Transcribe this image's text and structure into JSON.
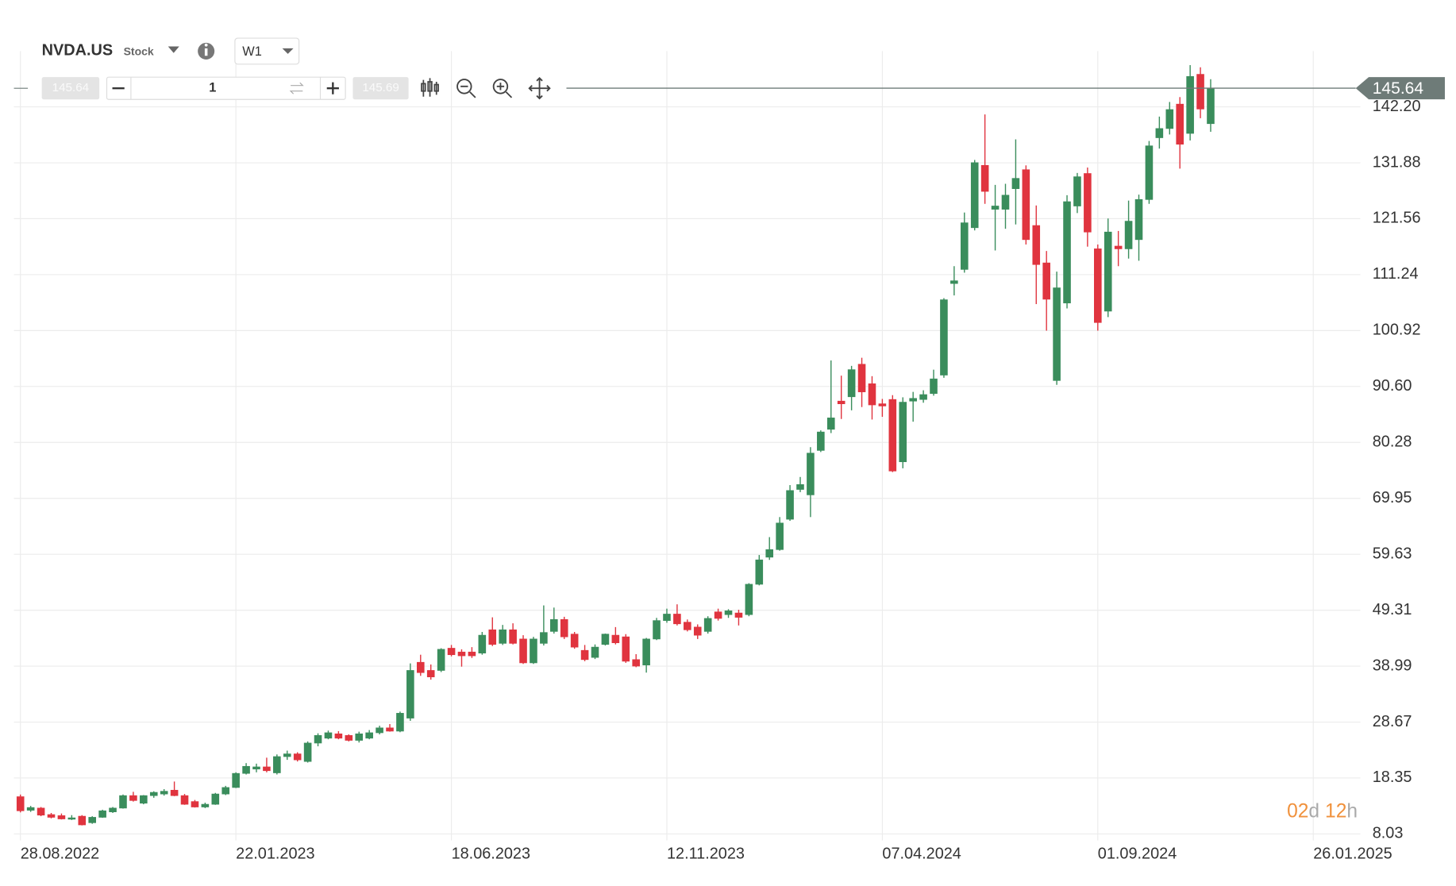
{
  "ui": {
    "symbol": "NVDA.US",
    "asset_type": "Stock",
    "interval": "W1",
    "sell_price": "145.64",
    "quantity": "1",
    "buy_price": "145.69"
  },
  "chart_data": {
    "type": "candlestick",
    "categories": [
      "28.08.2022",
      null,
      null,
      null,
      null,
      null,
      null,
      null,
      null,
      null,
      null,
      null,
      null,
      null,
      null,
      null,
      null,
      null,
      null,
      null,
      null,
      "22.01.2023",
      null,
      null,
      null,
      null,
      null,
      null,
      null,
      null,
      null,
      null,
      null,
      null,
      null,
      null,
      null,
      null,
      null,
      null,
      null,
      null,
      "18.06.2023",
      null,
      null,
      null,
      null,
      null,
      null,
      null,
      null,
      null,
      null,
      null,
      null,
      null,
      null,
      null,
      null,
      null,
      null,
      null,
      null,
      "12.11.2023",
      null,
      null,
      null,
      null,
      null,
      null,
      null,
      null,
      null,
      null,
      null,
      null,
      null,
      null,
      null,
      null,
      null,
      null,
      null,
      null,
      "07.04.2024",
      null,
      null,
      null,
      null,
      null,
      null,
      null,
      null,
      null,
      null,
      null,
      null,
      null,
      null,
      null,
      null,
      null,
      null,
      null,
      null,
      "01.09.2024",
      null,
      null,
      null,
      null,
      null,
      null,
      null,
      null,
      null,
      null,
      null,
      null,
      null,
      null,
      null,
      null,
      null,
      null,
      null,
      null,
      "26.01.2025",
      null,
      null,
      null,
      null
    ],
    "open": [
      14.9,
      12.4,
      12.8,
      11.6,
      11.4,
      10.8,
      11.3,
      10.1,
      11.1,
      12.1,
      12.8,
      15.1,
      13.7,
      15.1,
      15.4,
      16.1,
      15.1,
      14.0,
      13.0,
      13.5,
      15.4,
      16.6,
      19.2,
      20.0,
      20.4,
      19.3,
      22.3,
      22.8,
      21.4,
      24.8,
      25.7,
      26.5,
      26.2,
      25.3,
      25.7,
      26.7,
      27.6,
      27.0,
      29.4,
      39.7,
      38.2,
      38.2,
      42.3,
      41.6,
      41.6,
      41.4,
      45.7,
      43.2,
      45.7,
      44.0,
      39.6,
      43.2,
      45.4,
      47.6,
      44.9,
      41.9,
      40.6,
      43.0,
      44.7,
      44.4,
      40.2,
      39.2,
      44.0,
      47.4,
      48.6,
      47.1,
      46.2,
      45.4,
      49.0,
      48.5,
      48.8,
      48.5,
      54.1,
      59.1,
      60.5,
      66.1,
      71.6,
      70.6,
      78.8,
      82.7,
      87.9,
      88.7,
      94.7,
      91.1,
      87.4,
      88.2,
      76.7,
      87.9,
      88.2,
      89.3,
      92.7,
      109.6,
      112.2,
      119.9,
      131.4,
      123.3,
      123.3,
      127.1,
      130.6,
      120.3,
      113.4,
      91.7,
      106.0,
      123.9,
      129.9,
      116.0,
      104.5,
      116.5,
      116.0,
      117.7,
      125.1,
      136.5,
      138.2,
      142.7,
      137.3,
      148.2,
      139.1,
      null,
      null,
      null,
      null,
      null,
      null,
      null,
      null,
      null,
      null,
      null,
      null,
      null,
      null
    ],
    "high": [
      15.3,
      13.2,
      13.0,
      11.9,
      11.8,
      11.5,
      11.5,
      11.3,
      12.5,
      13.0,
      15.3,
      15.8,
      15.2,
      15.9,
      16.3,
      17.7,
      15.4,
      14.3,
      13.8,
      15.6,
      16.9,
      19.4,
      21.1,
      21.0,
      22.1,
      22.7,
      23.4,
      23.1,
      25.1,
      26.6,
      27.1,
      27.0,
      26.4,
      26.9,
      27.2,
      28.0,
      28.3,
      30.6,
      39.5,
      41.1,
      39.3,
      42.3,
      42.9,
      42.1,
      42.5,
      45.3,
      48.0,
      46.6,
      46.9,
      44.7,
      44.4,
      50.2,
      49.8,
      48.1,
      45.3,
      42.9,
      43.0,
      45.0,
      46.2,
      44.9,
      41.2,
      44.2,
      47.9,
      49.6,
      50.4,
      47.6,
      46.7,
      48.2,
      49.6,
      49.5,
      49.4,
      54.3,
      59.5,
      62.8,
      66.5,
      72.4,
      73.9,
      79.4,
      82.5,
      95.4,
      92.6,
      94.4,
      95.9,
      92.5,
      88.3,
      89.0,
      88.6,
      89.6,
      89.9,
      93.7,
      106.9,
      112.8,
      122.7,
      132.4,
      140.8,
      127.8,
      128.0,
      136.2,
      131.4,
      124.0,
      115.6,
      111.8,
      125.9,
      130.0,
      131.0,
      116.8,
      121.6,
      119.3,
      124.9,
      126.0,
      135.9,
      140.4,
      143.1,
      144.0,
      149.9,
      149.5,
      147.3,
      null,
      null,
      null,
      null,
      null,
      null,
      null,
      null,
      null,
      null,
      null,
      null,
      null,
      null
    ],
    "low": [
      12.0,
      12.1,
      11.3,
      10.9,
      10.7,
      10.6,
      9.6,
      9.9,
      11.0,
      11.9,
      12.7,
      14.0,
      13.5,
      14.7,
      15.1,
      15.0,
      13.4,
      12.9,
      12.8,
      13.4,
      15.2,
      16.5,
      19.0,
      19.4,
      19.4,
      19.0,
      21.7,
      21.4,
      21.2,
      24.2,
      25.5,
      25.5,
      25.1,
      24.9,
      25.5,
      26.4,
      26.9,
      26.8,
      28.9,
      37.2,
      36.5,
      37.9,
      40.8,
      38.9,
      40.5,
      41.1,
      42.7,
      42.9,
      43.0,
      39.4,
      39.4,
      42.8,
      45.0,
      44.0,
      42.2,
      39.9,
      40.3,
      42.8,
      43.0,
      39.6,
      38.8,
      37.8,
      43.8,
      47.0,
      46.5,
      45.4,
      44.0,
      45.0,
      47.4,
      47.9,
      46.5,
      48.2,
      53.9,
      58.6,
      60.3,
      65.8,
      71.1,
      66.5,
      78.5,
      82.0,
      84.6,
      86.2,
      86.8,
      84.5,
      85.0,
      74.8,
      75.5,
      84.1,
      87.6,
      88.9,
      92.2,
      107.4,
      111.6,
      119.4,
      124.3,
      115.7,
      119.7,
      120.5,
      116.8,
      105.8,
      100.9,
      90.9,
      105.0,
      122.6,
      116.4,
      100.9,
      103.4,
      112.8,
      114.2,
      113.8,
      124.3,
      134.5,
      137.1,
      130.8,
      136.0,
      140.1,
      137.6,
      null,
      null,
      null,
      null,
      null,
      null,
      null,
      null,
      null,
      null,
      null,
      null,
      null,
      null
    ],
    "close": [
      12.3,
      12.9,
      11.5,
      11.1,
      10.8,
      11.0,
      9.7,
      11.1,
      12.3,
      12.8,
      15.1,
      14.2,
      15.1,
      15.7,
      15.9,
      15.1,
      13.5,
      13.0,
      13.5,
      15.4,
      16.6,
      19.2,
      20.5,
      20.4,
      19.7,
      22.3,
      22.8,
      21.7,
      24.8,
      26.2,
      26.7,
      25.7,
      25.3,
      26.5,
      26.7,
      27.6,
      27.0,
      30.3,
      38.2,
      37.8,
      37.0,
      42.1,
      41.1,
      40.9,
      40.9,
      44.7,
      43.0,
      45.7,
      43.2,
      39.6,
      44.0,
      45.2,
      47.6,
      44.4,
      42.5,
      40.2,
      42.5,
      44.9,
      43.3,
      39.9,
      39.0,
      44.0,
      47.4,
      48.6,
      46.8,
      45.7,
      44.7,
      47.8,
      47.8,
      49.2,
      48.0,
      54.1,
      58.6,
      60.5,
      65.4,
      71.4,
      72.5,
      78.3,
      82.2,
      84.8,
      87.4,
      93.7,
      89.6,
      87.2,
      87.0,
      75.0,
      87.7,
      88.4,
      89.1,
      92.0,
      106.6,
      110.1,
      120.8,
      131.9,
      126.6,
      123.9,
      125.9,
      129.0,
      117.7,
      113.1,
      106.7,
      108.8,
      124.7,
      129.3,
      119.1,
      102.4,
      119.1,
      116.0,
      121.1,
      125.1,
      135.0,
      138.2,
      141.7,
      135.3,
      147.8,
      141.8,
      145.64,
      null,
      null,
      null,
      null,
      null,
      null,
      null,
      null,
      null,
      null,
      null,
      null,
      null,
      null
    ],
    "up_color": "#3a8d5c",
    "down_color": "#e0343f",
    "ylim": [
      6.83,
      152.48
    ],
    "yticks": [
      8.03,
      18.35,
      28.67,
      38.99,
      49.31,
      59.63,
      69.95,
      80.28,
      {
        "value": 90.6,
        "label": "90.60"
      },
      100.92,
      111.24,
      121.56,
      131.88,
      {
        "value": 142.2,
        "label": "142.20"
      }
    ],
    "grid": true,
    "countdown": [
      "02",
      "d",
      "12",
      "h"
    ]
  }
}
